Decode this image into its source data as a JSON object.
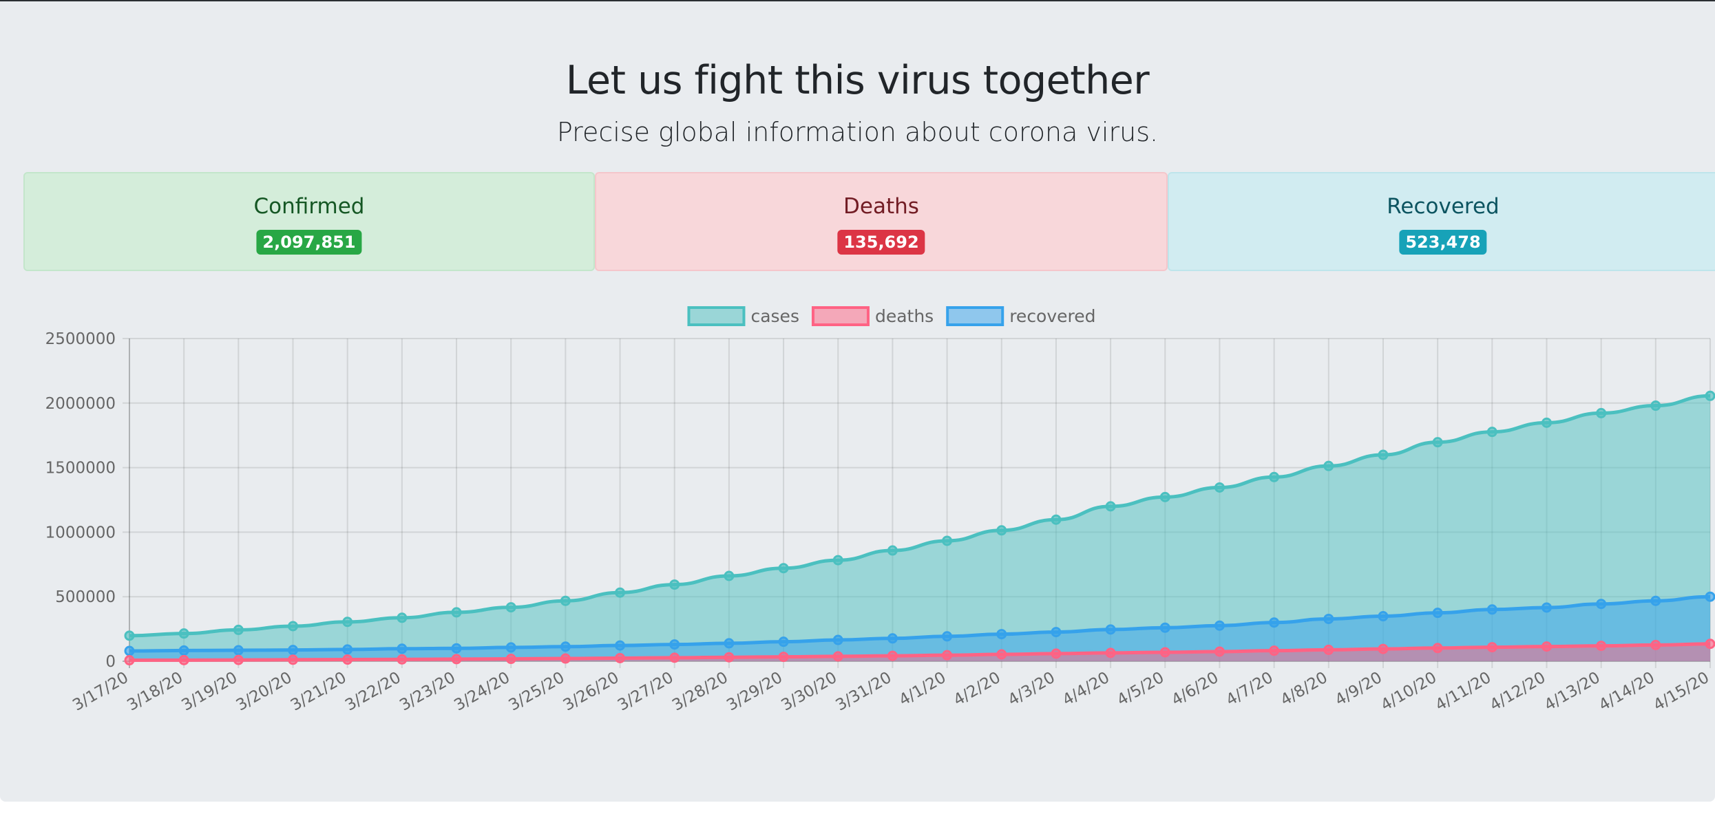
{
  "header": {
    "title": "Let us fight this virus together",
    "subtitle": "Precise global information about corona virus."
  },
  "stats": {
    "confirmed": {
      "label": "Confirmed",
      "value": "2,097,851"
    },
    "deaths": {
      "label": "Deaths",
      "value": "135,692"
    },
    "recovered": {
      "label": "Recovered",
      "value": "523,478"
    }
  },
  "colors": {
    "cases": "#4bc0c0",
    "deaths": "#ff6384",
    "recovered": "#36a2eb"
  },
  "chart_data": {
    "type": "area",
    "title": "",
    "xlabel": "",
    "ylabel": "",
    "ylim": [
      0,
      2500000
    ],
    "yticks": [
      0,
      500000,
      1000000,
      1500000,
      2000000,
      2500000
    ],
    "grid": true,
    "legend_position": "top",
    "categories": [
      "3/17/20",
      "3/18/20",
      "3/19/20",
      "3/20/20",
      "3/21/20",
      "3/22/20",
      "3/23/20",
      "3/24/20",
      "3/25/20",
      "3/26/20",
      "3/27/20",
      "3/28/20",
      "3/29/20",
      "3/30/20",
      "3/31/20",
      "4/1/20",
      "4/2/20",
      "4/3/20",
      "4/4/20",
      "4/5/20",
      "4/6/20",
      "4/7/20",
      "4/8/20",
      "4/9/20",
      "4/10/20",
      "4/11/20",
      "4/12/20",
      "4/13/20",
      "4/14/20",
      "4/15/20"
    ],
    "series": [
      {
        "name": "cases",
        "key": "cases",
        "values": [
          198000,
          215000,
          243000,
          272000,
          305000,
          337000,
          379000,
          418000,
          468000,
          532000,
          594000,
          661000,
          721000,
          783000,
          858000,
          933000,
          1014000,
          1097000,
          1200000,
          1272000,
          1346000,
          1427000,
          1513000,
          1599000,
          1697000,
          1777000,
          1848000,
          1922000,
          1980000,
          2056000
        ]
      },
      {
        "name": "recovered",
        "key": "recovered",
        "values": [
          80000,
          83000,
          85000,
          87000,
          91000,
          97000,
          100000,
          107000,
          113000,
          122000,
          130000,
          139000,
          151000,
          165000,
          177000,
          193000,
          210000,
          226000,
          246000,
          260000,
          276000,
          300000,
          328000,
          349000,
          375000,
          401000,
          416000,
          444000,
          468000,
          500000
        ]
      },
      {
        "name": "deaths",
        "key": "deaths",
        "values": [
          7900,
          8900,
          10000,
          11800,
          13000,
          14600,
          16500,
          18600,
          21200,
          24100,
          27300,
          30900,
          34300,
          37900,
          42300,
          47200,
          53300,
          59100,
          64700,
          69500,
          74700,
          81900,
          88400,
          95600,
          102500,
          108800,
          114100,
          119500,
          125900,
          134600
        ]
      }
    ],
    "legend": [
      "cases",
      "deaths",
      "recovered"
    ]
  }
}
